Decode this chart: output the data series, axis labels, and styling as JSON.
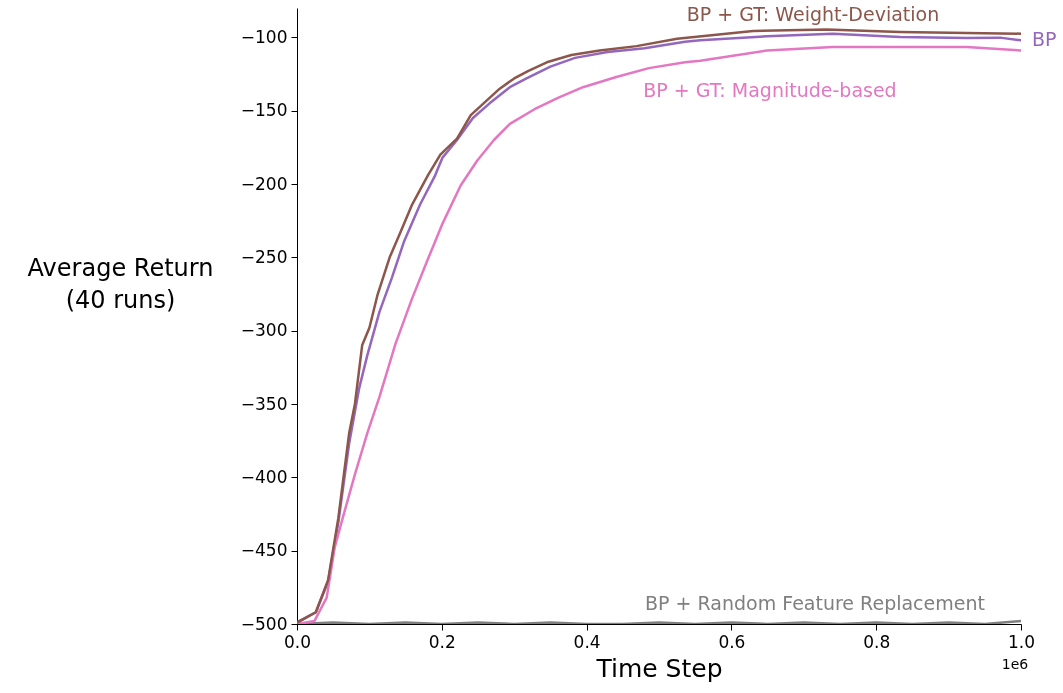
{
  "chart_data": {
    "type": "line",
    "xlabel": "Time Step",
    "ylabel": "Average Return\n(40 runs)",
    "xlim": [
      0,
      1.0
    ],
    "xticks": [
      {
        "value": 0,
        "label": "0.0"
      },
      0.2,
      0.4,
      0.6,
      0.8,
      {
        "value": 1.0,
        "label": "1.0"
      }
    ],
    "ylim": [
      -500,
      -80
    ],
    "yticks": [
      -500,
      -450,
      -400,
      -350,
      -300,
      -250,
      -200,
      -150,
      -100
    ],
    "grid": false,
    "line_style": "solid",
    "marker": "none",
    "annotations": [
      "1e6"
    ],
    "series": [
      {
        "name": "BP + Random Feature Replacement",
        "color": "#7f7f7f",
        "x": [
          0,
          0.05,
          0.1,
          0.15,
          0.2,
          0.25,
          0.3,
          0.35,
          0.4,
          0.45,
          0.5,
          0.55,
          0.6,
          0.65,
          0.7,
          0.75,
          0.8,
          0.85,
          0.9,
          0.95,
          1.0
        ],
        "values": [
          -500,
          -499,
          -500,
          -499,
          -500,
          -499,
          -500,
          -499,
          -500,
          -500,
          -499,
          -500,
          -499,
          -500,
          -499,
          -500,
          -499,
          -500,
          -499,
          -500,
          -498
        ]
      },
      {
        "name": "BP",
        "color": "#9467bd",
        "x": [
          0,
          0.026,
          0.043,
          0.057,
          0.072,
          0.086,
          0.097,
          0.114,
          0.131,
          0.148,
          0.17,
          0.19,
          0.201,
          0.221,
          0.243,
          0.266,
          0.294,
          0.317,
          0.35,
          0.384,
          0.429,
          0.48,
          0.536,
          0.557,
          0.649,
          0.74,
          0.833,
          0.925,
          0.971,
          1.0
        ],
        "values": [
          -499,
          -492,
          -471,
          -431,
          -377,
          -339,
          -317,
          -287,
          -264,
          -239,
          -214,
          -195,
          -182,
          -170,
          -155,
          -145,
          -134,
          -128,
          -120,
          -114,
          -110,
          -107.5,
          -103,
          -102,
          -99.3,
          -97.5,
          -99.8,
          -100.5,
          -100.2,
          -102
        ]
      },
      {
        "name": "BP + GT: Magnitude-based",
        "color": "#e377c2",
        "x": [
          0,
          0.024,
          0.041,
          0.052,
          0.063,
          0.08,
          0.097,
          0.114,
          0.136,
          0.159,
          0.181,
          0.201,
          0.226,
          0.249,
          0.272,
          0.294,
          0.328,
          0.362,
          0.395,
          0.441,
          0.486,
          0.536,
          0.557,
          0.649,
          0.74,
          0.833,
          0.925,
          1.0
        ],
        "values": [
          -500,
          -498,
          -482,
          -448,
          -428,
          -398,
          -370,
          -345,
          -309,
          -278,
          -251,
          -227,
          -201,
          -184,
          -170,
          -159,
          -149,
          -141,
          -134,
          -127,
          -121,
          -117,
          -116,
          -109,
          -106.6,
          -106.6,
          -106.6,
          -109
        ]
      },
      {
        "name": "BP + GT: Weight-Deviation",
        "color": "#8c564b",
        "x": [
          0,
          0.026,
          0.043,
          0.057,
          0.072,
          0.08,
          0.09,
          0.1,
          0.111,
          0.128,
          0.142,
          0.159,
          0.181,
          0.198,
          0.221,
          0.24,
          0.26,
          0.28,
          0.3,
          0.319,
          0.345,
          0.379,
          0.418,
          0.469,
          0.525,
          0.63,
          0.732,
          0.833,
          0.925,
          1.0
        ],
        "values": [
          -499,
          -492,
          -470,
          -428,
          -370,
          -350,
          -310,
          -298,
          -276,
          -250,
          -234,
          -214,
          -194,
          -180,
          -169,
          -153,
          -144,
          -135,
          -128,
          -123,
          -117,
          -112,
          -109,
          -106,
          -101,
          -95.7,
          -94.7,
          -96.4,
          -97,
          -97.5
        ]
      }
    ]
  }
}
